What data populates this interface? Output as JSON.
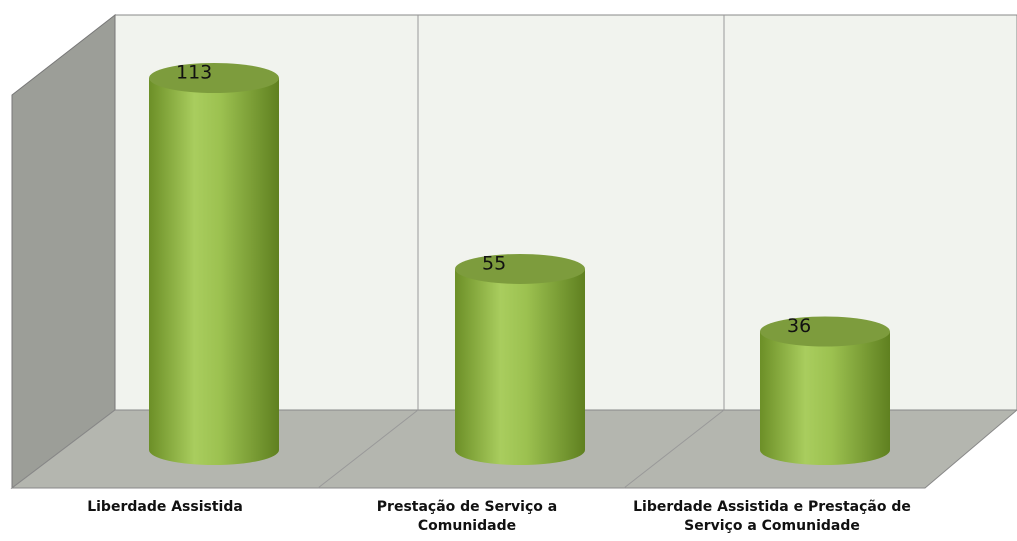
{
  "chart_data": {
    "type": "bar3d",
    "categories": [
      "Liberdade Assistida",
      "Prestação de Serviço a Comunidade",
      "Liberdade Assistida e Prestação de Serviço a Comunidade"
    ],
    "values": [
      113,
      55,
      36
    ],
    "color": "#8db347"
  }
}
